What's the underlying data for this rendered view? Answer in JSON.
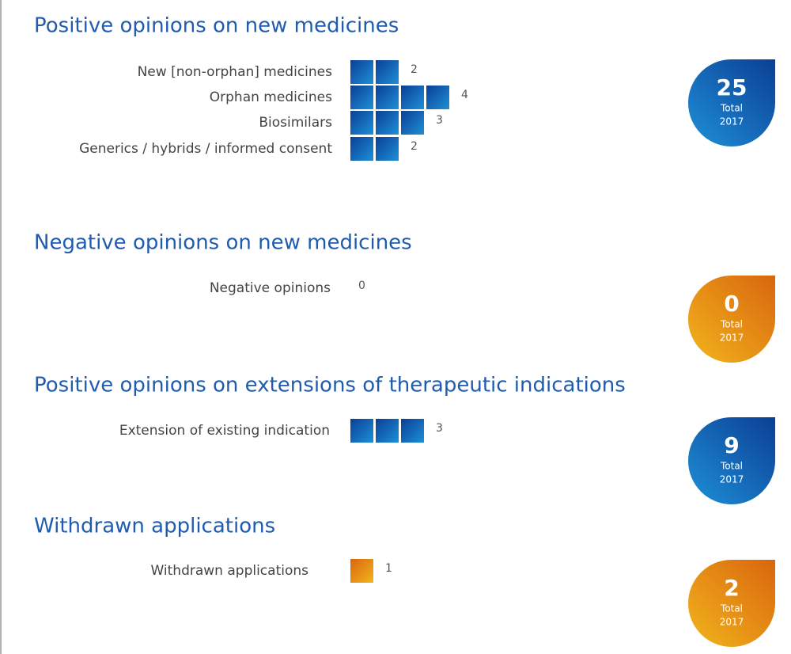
{
  "sections": [
    {
      "title": "Positive opinions on new medicines",
      "colors": [
        "#0b3f94",
        "#1e90d8"
      ],
      "rows": [
        {
          "label": "New [non-orphan] medicines",
          "value": 2
        },
        {
          "label": "Orphan medicines",
          "value": 4
        },
        {
          "label": "Biosimilars",
          "value": 3
        },
        {
          "label": "Generics / hybrids / informed consent",
          "value": 2
        }
      ],
      "total": 25,
      "total_label": "Total",
      "year": "2017"
    },
    {
      "title": "Negative opinions on new medicines",
      "colors": [
        "#d9660e",
        "#f2b51c"
      ],
      "rows": [
        {
          "label": "Negative opinions",
          "value": 0
        }
      ],
      "total": 0,
      "total_label": "Total",
      "year": "2017"
    },
    {
      "title": "Positive opinions on extensions of therapeutic indications",
      "colors": [
        "#0b3f94",
        "#1e90d8"
      ],
      "rows": [
        {
          "label": "Extension of existing indication",
          "value": 3
        }
      ],
      "total": 9,
      "total_label": "Total",
      "year": "2017"
    },
    {
      "title": "Withdrawn applications",
      "colors": [
        "#d9660e",
        "#f2b51c"
      ],
      "rows": [
        {
          "label": "Withdrawn applications",
          "value": 1
        }
      ],
      "total": 2,
      "total_label": "Total",
      "year": "2017"
    }
  ]
}
